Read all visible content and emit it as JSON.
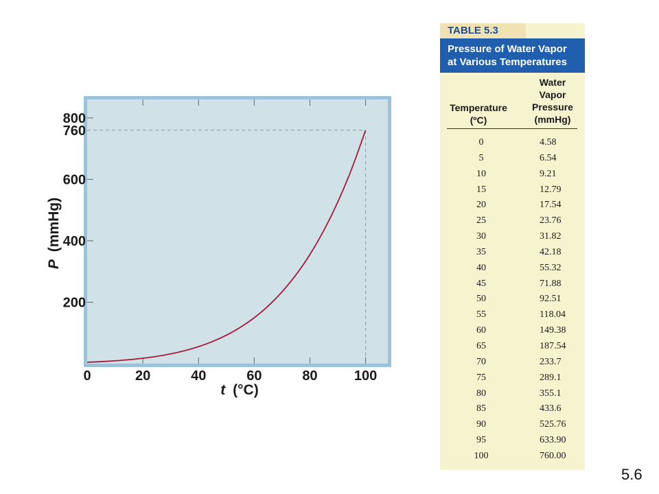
{
  "chart_data": {
    "type": "line",
    "xlabel_var": "t",
    "xlabel_unit": "(°C)",
    "ylabel_var": "P",
    "ylabel_unit": "(mmHg)",
    "xlim": [
      0,
      108
    ],
    "ylim": [
      0,
      860
    ],
    "x_ticks": [
      0,
      20,
      40,
      60,
      80,
      100
    ],
    "x_tick_labels": [
      "0",
      "20",
      "40",
      "60",
      "80",
      "100"
    ],
    "y_ticks": [
      200,
      400,
      600,
      760,
      800
    ],
    "y_tick_labels": [
      "200",
      "400",
      "600",
      "760",
      "800"
    ],
    "reference": {
      "x": 100,
      "y": 760
    },
    "grid": false,
    "series": [
      {
        "color": "#a31c37",
        "x": [
          0,
          5,
          10,
          15,
          20,
          25,
          30,
          35,
          40,
          45,
          50,
          55,
          60,
          65,
          70,
          75,
          80,
          85,
          90,
          95,
          100
        ],
        "y": [
          4.58,
          6.54,
          9.21,
          12.79,
          17.54,
          23.76,
          31.82,
          42.18,
          55.32,
          71.88,
          92.51,
          118.04,
          149.38,
          187.54,
          233.7,
          289.1,
          355.1,
          433.6,
          525.76,
          633.9,
          760.0
        ]
      }
    ]
  },
  "table": {
    "number": "TABLE 5.3",
    "title_line1": "Pressure of Water Vapor",
    "title_line2": "at Various Temperatures",
    "col_temp_line1": "Temperature",
    "col_temp_line2": "(ºC)",
    "col_press_line1": "Water",
    "col_press_line2": "Vapor",
    "col_press_line3": "Pressure",
    "col_press_line4": "(mmHg)",
    "rows": [
      {
        "t": "0",
        "p": "4.58"
      },
      {
        "t": "5",
        "p": "6.54"
      },
      {
        "t": "10",
        "p": "9.21"
      },
      {
        "t": "15",
        "p": "12.79"
      },
      {
        "t": "20",
        "p": "17.54"
      },
      {
        "t": "25",
        "p": "23.76"
      },
      {
        "t": "30",
        "p": "31.82"
      },
      {
        "t": "35",
        "p": "42.18"
      },
      {
        "t": "40",
        "p": "55.32"
      },
      {
        "t": "45",
        "p": "71.88"
      },
      {
        "t": "50",
        "p": "92.51"
      },
      {
        "t": "55",
        "p": "118.04"
      },
      {
        "t": "60",
        "p": "149.38"
      },
      {
        "t": "65",
        "p": "187.54"
      },
      {
        "t": "70",
        "p": "233.7"
      },
      {
        "t": "75",
        "p": "289.1"
      },
      {
        "t": "80",
        "p": "355.1"
      },
      {
        "t": "85",
        "p": "433.6"
      },
      {
        "t": "90",
        "p": "525.76"
      },
      {
        "t": "95",
        "p": "633.90"
      },
      {
        "t": "100",
        "p": "760.00"
      }
    ]
  },
  "slide_number": "5.6",
  "colors": {
    "plot_background": "#d0e1e8",
    "frame": "#9cc3da",
    "curve": "#a31c37",
    "table_background": "#f6f4cf",
    "table_title_background": "#1f5fae"
  }
}
